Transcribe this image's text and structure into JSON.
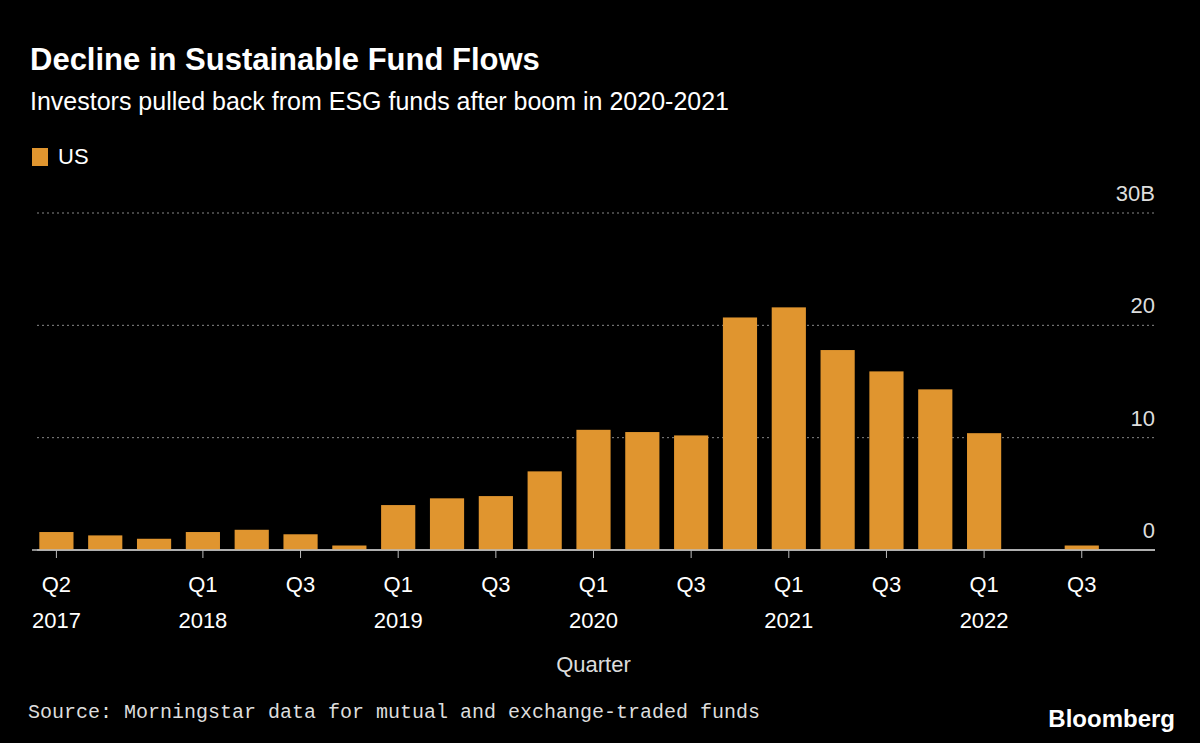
{
  "chart_data": {
    "type": "bar",
    "title": "Decline in Sustainable Fund Flows",
    "subtitle": "Investors pulled back from ESG funds after boom in 2020-2021",
    "x_label": "Quarter",
    "source": "Source: Morningstar data for mutual and exchange-traded funds",
    "credit": "Bloomberg",
    "categories": [
      "Q2\n2017",
      null,
      null,
      "Q1\n2018",
      null,
      "Q3",
      null,
      "Q1\n2019",
      null,
      "Q3",
      null,
      "Q1\n2020",
      null,
      "Q3",
      null,
      "Q1\n2021",
      null,
      "Q3",
      null,
      "Q1\n2022",
      null,
      "Q3",
      null
    ],
    "series": [
      {
        "name": "US",
        "color": "#e0952f",
        "values": [
          1.6,
          1.3,
          1.0,
          1.6,
          1.8,
          1.4,
          0.4,
          4.0,
          4.6,
          4.8,
          7.0,
          10.7,
          10.5,
          10.2,
          20.7,
          21.6,
          17.8,
          15.9,
          14.3,
          10.4,
          0,
          0.4,
          null
        ]
      }
    ],
    "ylim": [
      0,
      30
    ],
    "yticks": [
      0,
      10,
      20,
      {
        "value": 30,
        "label": "30B"
      }
    ],
    "grid": true,
    "legend": "top-left"
  }
}
